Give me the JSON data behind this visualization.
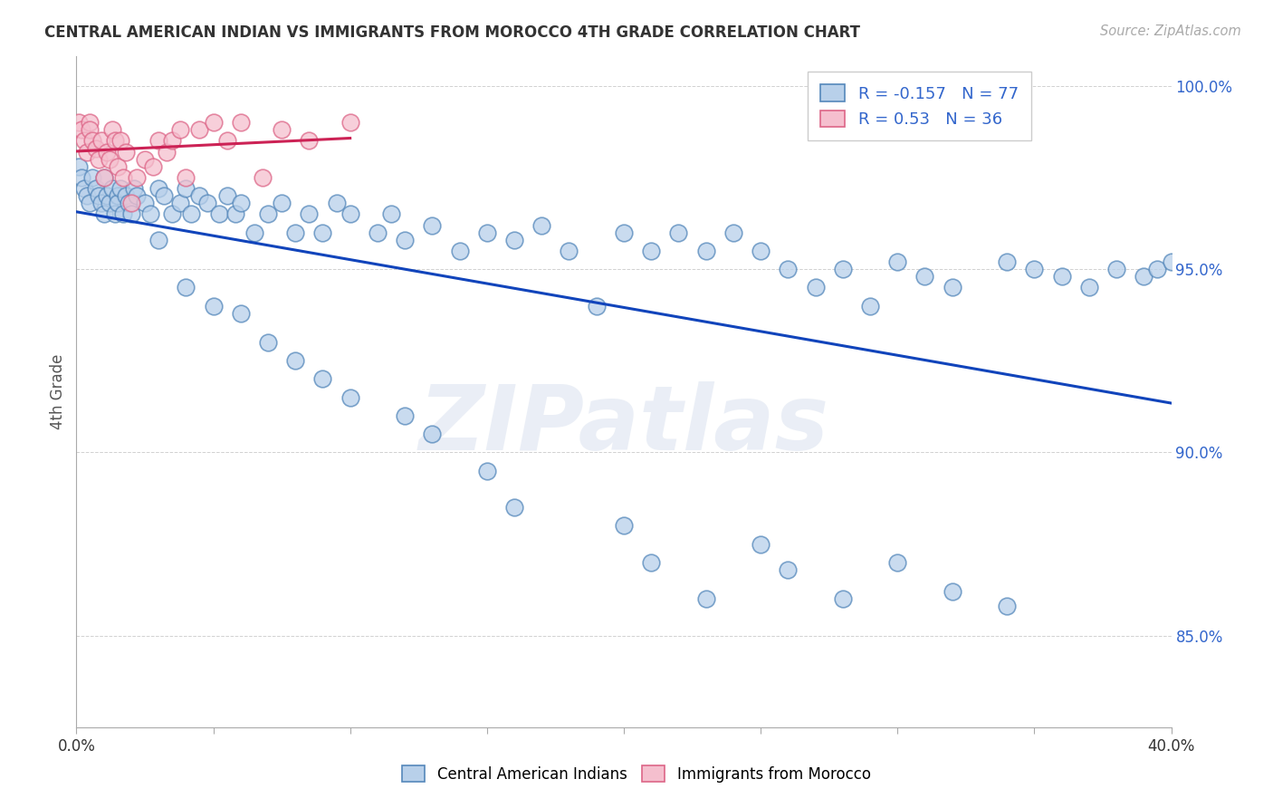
{
  "title": "CENTRAL AMERICAN INDIAN VS IMMIGRANTS FROM MOROCCO 4TH GRADE CORRELATION CHART",
  "source": "Source: ZipAtlas.com",
  "ylabel": "4th Grade",
  "xlim": [
    0.0,
    0.4
  ],
  "ylim": [
    0.825,
    1.008
  ],
  "yticks": [
    0.85,
    0.9,
    0.95,
    1.0
  ],
  "ytick_labels": [
    "85.0%",
    "90.0%",
    "95.0%",
    "100.0%"
  ],
  "xticks": [
    0.0,
    0.05,
    0.1,
    0.15,
    0.2,
    0.25,
    0.3,
    0.35,
    0.4
  ],
  "xtick_labels": [
    "0.0%",
    "",
    "",
    "",
    "",
    "",
    "",
    "",
    "40.0%"
  ],
  "blue_R": -0.157,
  "blue_N": 77,
  "pink_R": 0.53,
  "pink_N": 36,
  "blue_color": "#b8d0ea",
  "blue_edge": "#5588bb",
  "pink_color": "#f5bfce",
  "pink_edge": "#dd6688",
  "trend_blue": "#1144bb",
  "trend_pink": "#cc2255",
  "watermark_text": "ZIPatlas",
  "blue_x": [
    0.001,
    0.002,
    0.003,
    0.004,
    0.005,
    0.006,
    0.007,
    0.008,
    0.009,
    0.01,
    0.01,
    0.011,
    0.012,
    0.013,
    0.014,
    0.015,
    0.015,
    0.016,
    0.017,
    0.018,
    0.019,
    0.02,
    0.021,
    0.022,
    0.025,
    0.027,
    0.03,
    0.032,
    0.035,
    0.038,
    0.04,
    0.042,
    0.045,
    0.048,
    0.052,
    0.055,
    0.058,
    0.06,
    0.065,
    0.07,
    0.075,
    0.08,
    0.085,
    0.09,
    0.095,
    0.1,
    0.11,
    0.115,
    0.12,
    0.13,
    0.14,
    0.15,
    0.16,
    0.17,
    0.18,
    0.19,
    0.2,
    0.21,
    0.22,
    0.23,
    0.24,
    0.25,
    0.26,
    0.27,
    0.28,
    0.29,
    0.3,
    0.31,
    0.32,
    0.34,
    0.35,
    0.36,
    0.37,
    0.38,
    0.39,
    0.395,
    0.4
  ],
  "blue_y": [
    0.978,
    0.975,
    0.972,
    0.97,
    0.968,
    0.975,
    0.972,
    0.97,
    0.968,
    0.975,
    0.965,
    0.97,
    0.968,
    0.972,
    0.965,
    0.97,
    0.968,
    0.972,
    0.965,
    0.97,
    0.968,
    0.965,
    0.972,
    0.97,
    0.968,
    0.965,
    0.972,
    0.97,
    0.965,
    0.968,
    0.972,
    0.965,
    0.97,
    0.968,
    0.965,
    0.97,
    0.965,
    0.968,
    0.96,
    0.965,
    0.968,
    0.96,
    0.965,
    0.96,
    0.968,
    0.965,
    0.96,
    0.965,
    0.958,
    0.962,
    0.955,
    0.96,
    0.958,
    0.962,
    0.955,
    0.94,
    0.96,
    0.955,
    0.96,
    0.955,
    0.96,
    0.955,
    0.95,
    0.945,
    0.95,
    0.94,
    0.952,
    0.948,
    0.945,
    0.952,
    0.95,
    0.948,
    0.945,
    0.95,
    0.948,
    0.95,
    0.952
  ],
  "blue_y_outliers_x": [
    0.03,
    0.04,
    0.05,
    0.06,
    0.07,
    0.08,
    0.09,
    0.1,
    0.12,
    0.13,
    0.15,
    0.16,
    0.2,
    0.21,
    0.23,
    0.25,
    0.26,
    0.28,
    0.3,
    0.32,
    0.34
  ],
  "blue_y_outliers_y": [
    0.958,
    0.945,
    0.94,
    0.938,
    0.93,
    0.925,
    0.92,
    0.915,
    0.91,
    0.905,
    0.895,
    0.885,
    0.88,
    0.87,
    0.86,
    0.875,
    0.868,
    0.86,
    0.87,
    0.862,
    0.858
  ],
  "pink_x": [
    0.001,
    0.002,
    0.003,
    0.004,
    0.005,
    0.005,
    0.006,
    0.007,
    0.008,
    0.009,
    0.01,
    0.011,
    0.012,
    0.013,
    0.014,
    0.015,
    0.016,
    0.017,
    0.018,
    0.02,
    0.022,
    0.025,
    0.028,
    0.03,
    0.033,
    0.035,
    0.038,
    0.04,
    0.045,
    0.05,
    0.055,
    0.06,
    0.068,
    0.075,
    0.085,
    0.1
  ],
  "pink_y": [
    0.99,
    0.988,
    0.985,
    0.982,
    0.99,
    0.988,
    0.985,
    0.983,
    0.98,
    0.985,
    0.975,
    0.982,
    0.98,
    0.988,
    0.985,
    0.978,
    0.985,
    0.975,
    0.982,
    0.968,
    0.975,
    0.98,
    0.978,
    0.985,
    0.982,
    0.985,
    0.988,
    0.975,
    0.988,
    0.99,
    0.985,
    0.99,
    0.975,
    0.988,
    0.985,
    0.99
  ]
}
